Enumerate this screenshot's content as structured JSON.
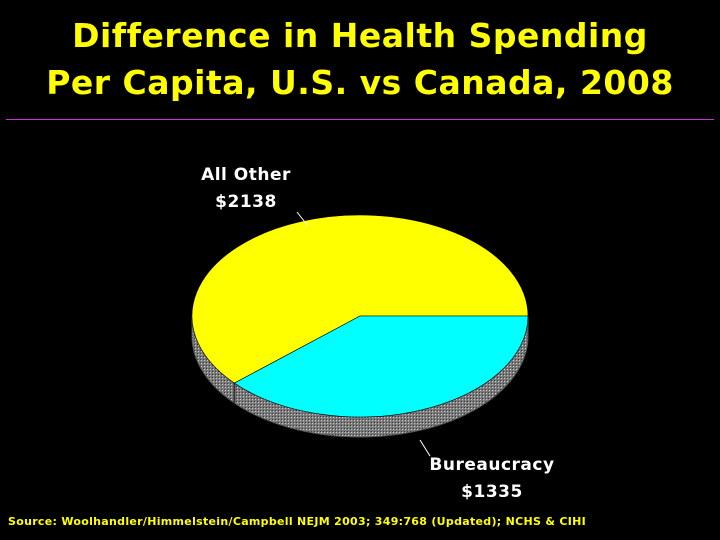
{
  "title_lines": [
    "Difference in Health Spending",
    "Per Capita, U.S. vs Canada, 2008"
  ],
  "source": "Source: Woolhandler/Himmelstein/Campbell NEJM 2003; 349:768 (Updated); NCHS & CIHI",
  "colors": {
    "background": "#000000",
    "title": "#ffff00",
    "rule": "#cc33cc",
    "label_text": "#ffffff",
    "source_text": "#ffff00"
  },
  "chart_data": {
    "type": "pie",
    "unit": "$",
    "slices": [
      {
        "name": "All Other",
        "value": 2138,
        "value_label": "$2138",
        "color": "#ffff00"
      },
      {
        "name": "Bureaucracy",
        "value": 1335,
        "value_label": "$1335",
        "color": "#00ffff"
      }
    ],
    "style": "3d",
    "legend": "none"
  }
}
